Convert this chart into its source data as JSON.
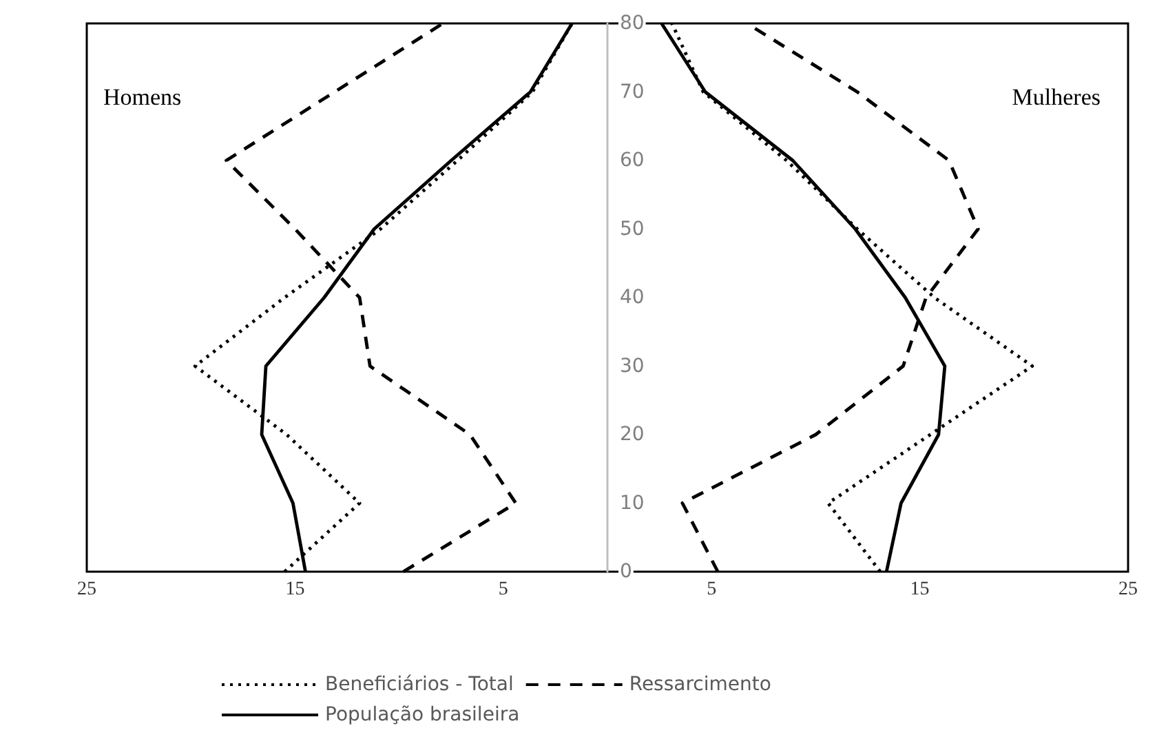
{
  "chart_data": {
    "type": "line",
    "annotations": [
      "Homens",
      "Mulheres"
    ],
    "xlim": [
      -25,
      25
    ],
    "xticks": [
      {
        "value": -25,
        "label": "25"
      },
      {
        "value": -15,
        "label": "15"
      },
      {
        "value": -5,
        "label": "5"
      },
      {
        "value": 5,
        "label": "5"
      },
      {
        "value": 15,
        "label": "15"
      },
      {
        "value": 25,
        "label": "25"
      }
    ],
    "ylim": [
      0,
      80
    ],
    "yticks": [
      0,
      10,
      20,
      30,
      40,
      50,
      60,
      70,
      80
    ],
    "series": [
      {
        "name": "Beneficiários - Total",
        "color": "#000000",
        "line_style": "dotted",
        "x": [
          -15.5,
          -11.9,
          -15.4,
          -19.8,
          -15.5,
          -10.9,
          -7.2,
          -3.6,
          -1.7,
          0,
          13.1,
          10.6,
          15.5,
          20.4,
          15.7,
          12.0,
          8.6,
          4.6,
          3.1
        ],
        "values": [
          0,
          10,
          20,
          30,
          40,
          50,
          60,
          70,
          80,
          null,
          0,
          10,
          20,
          30,
          40,
          50,
          60,
          70,
          80
        ]
      },
      {
        "name": "Ressarcimento",
        "color": "#000000",
        "line_style": "dashed",
        "x": [
          -9.8,
          -4.4,
          -6.6,
          -11.4,
          -11.9,
          -15.0,
          -18.3,
          -13.1,
          -7.9,
          0,
          5.3,
          3.6,
          10.0,
          14.2,
          15.3,
          17.8,
          16.4,
          12.0,
          6.7
        ],
        "values": [
          0,
          10,
          20,
          30,
          40,
          50,
          60,
          70,
          80,
          null,
          0,
          10,
          20,
          30,
          40,
          50,
          60,
          70,
          80
        ]
      },
      {
        "name": "População brasileira",
        "color": "#000000",
        "line_style": "solid",
        "x": [
          -14.5,
          -15.1,
          -16.6,
          -16.4,
          -13.6,
          -11.2,
          -7.5,
          -3.7,
          -1.7,
          0,
          13.4,
          14.1,
          15.9,
          16.2,
          14.3,
          11.9,
          8.9,
          4.7,
          2.6
        ],
        "values": [
          0,
          10,
          20,
          30,
          40,
          50,
          60,
          70,
          80,
          null,
          0,
          10,
          20,
          30,
          40,
          50,
          60,
          70,
          80
        ]
      }
    ],
    "marker": "none",
    "grid": false,
    "legend": "bottom"
  }
}
